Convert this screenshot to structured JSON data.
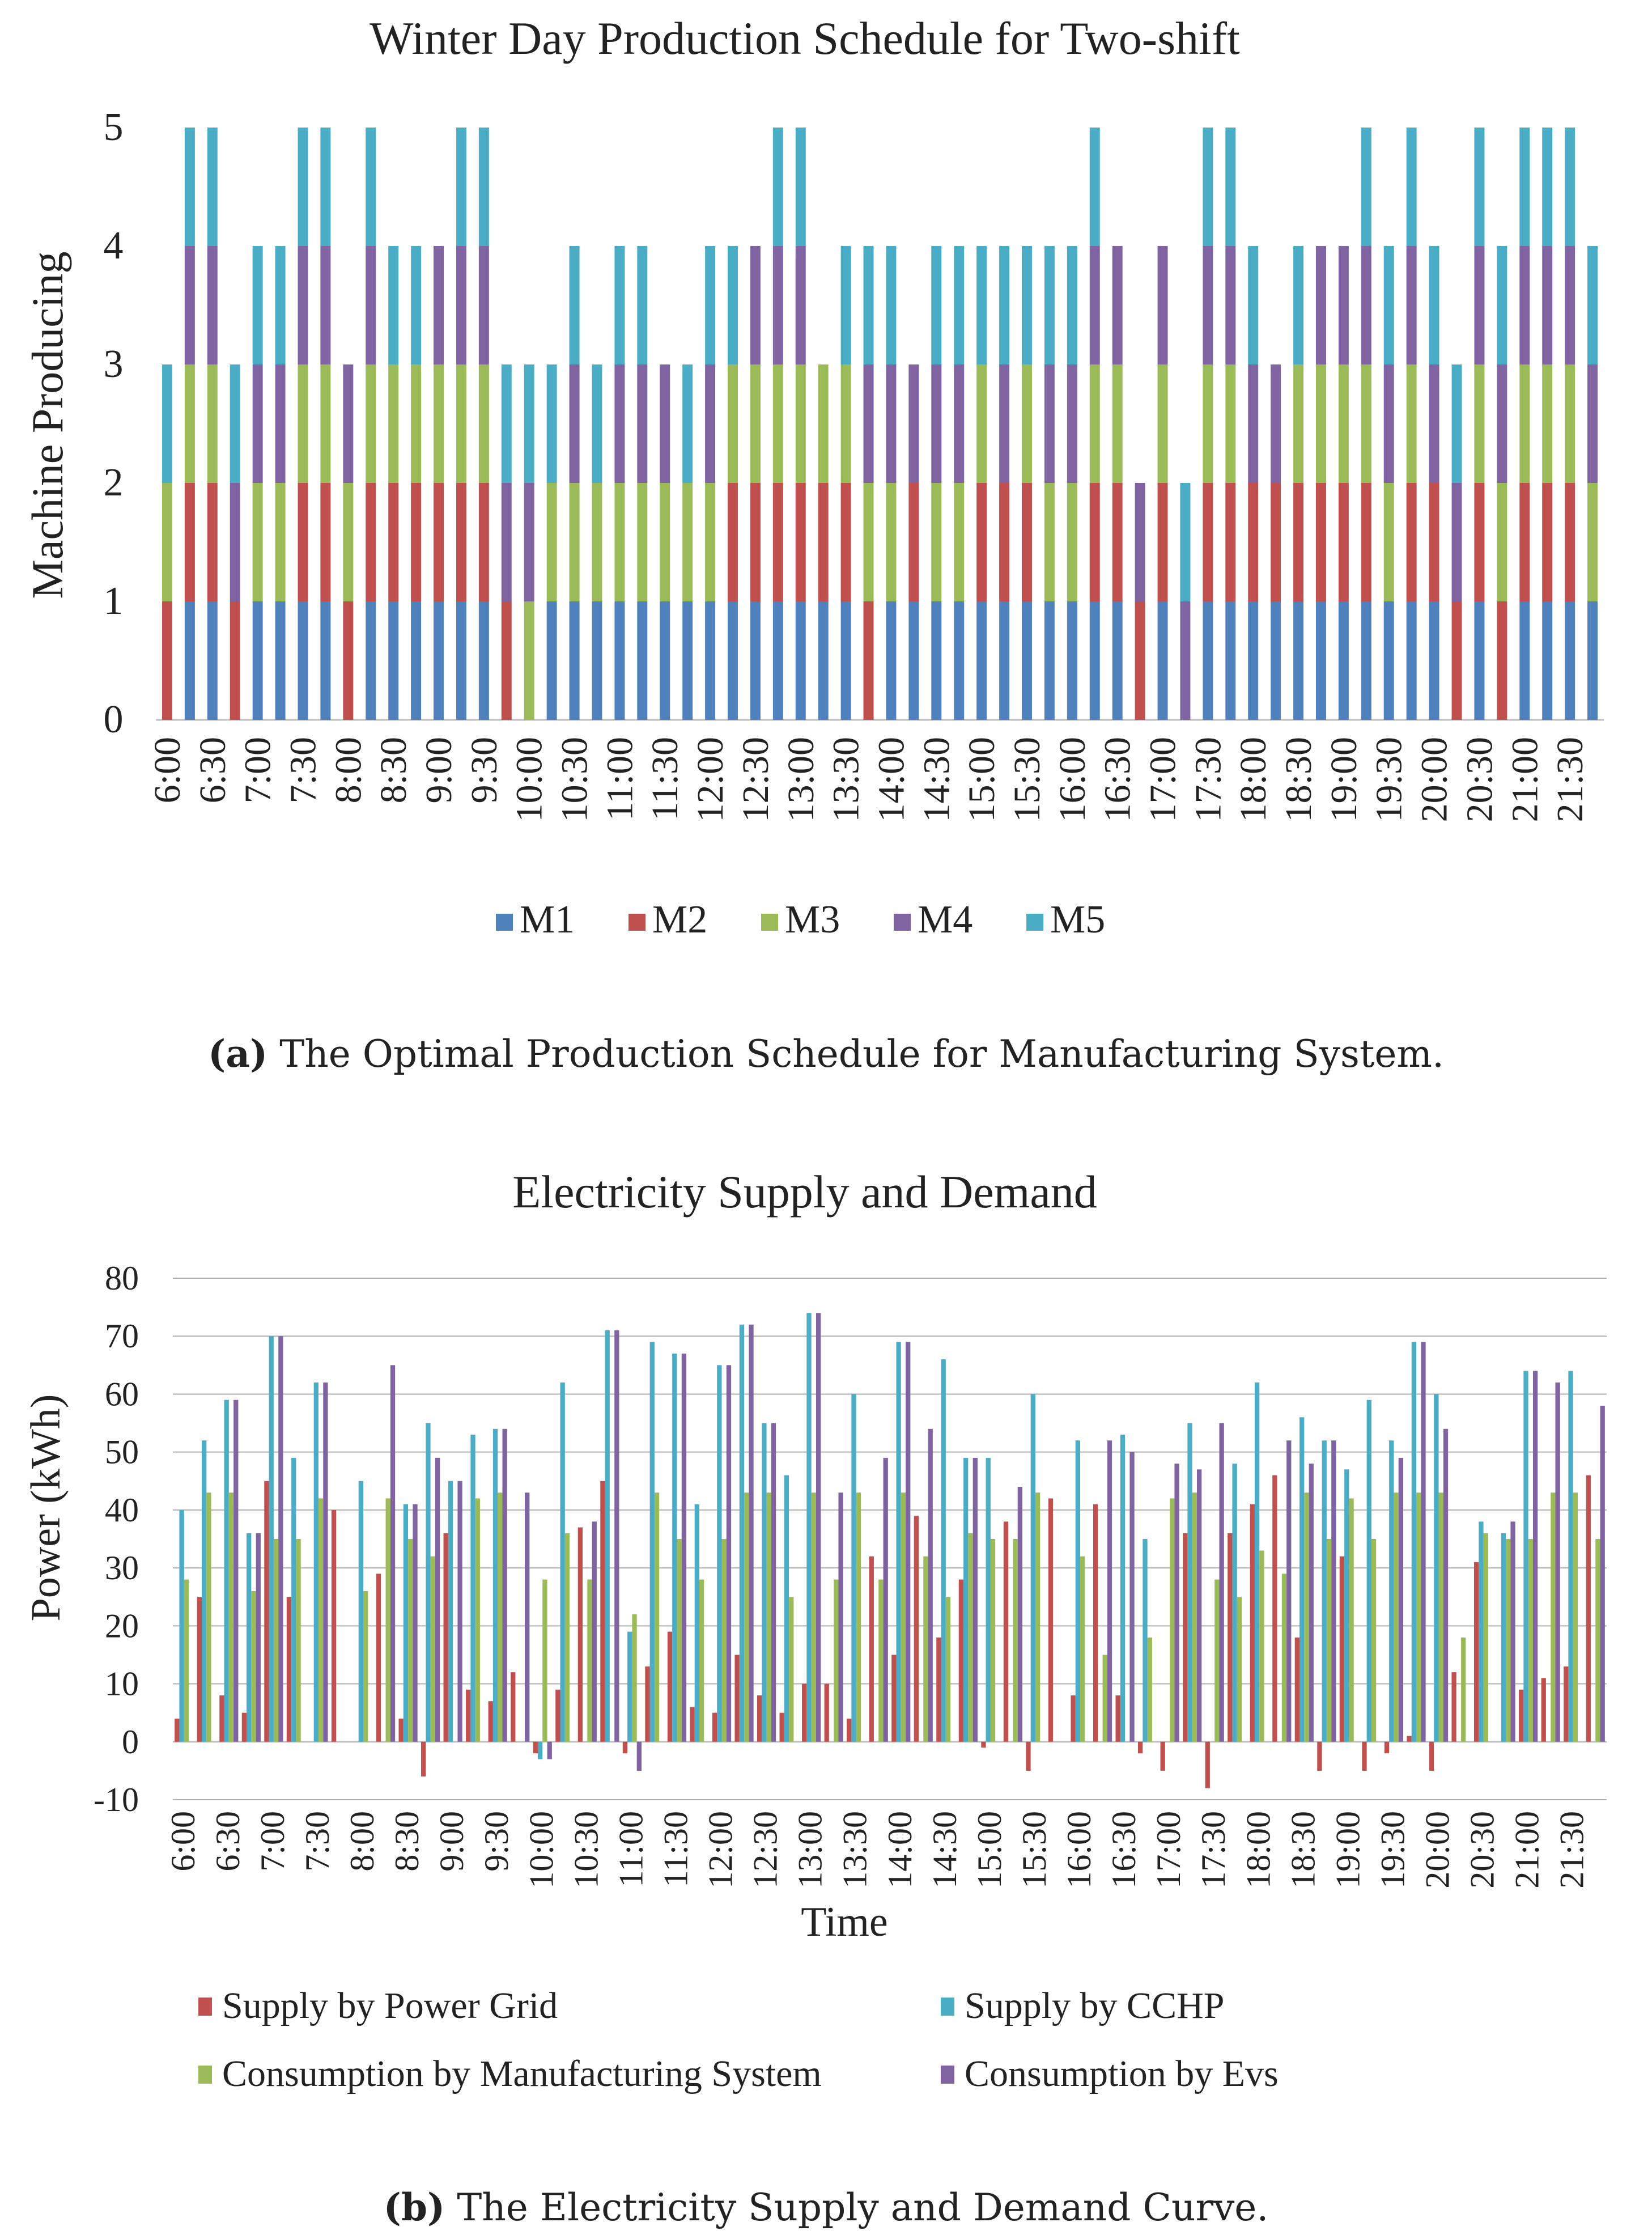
{
  "colors": {
    "M1": "#4f81bd",
    "M2": "#c0504d",
    "M3": "#9bbb59",
    "M4": "#8064a2",
    "M5": "#4bacc6",
    "grid": "#b0b0b0",
    "axis": "#bfbfbf"
  },
  "chart_data": [
    {
      "type": "bar",
      "stacked": true,
      "title": "Winter Day Production Schedule for Two-shift",
      "xlabel": "",
      "ylabel": "Machine Producing",
      "ylim": [
        0,
        5
      ],
      "yticks": [
        "0",
        "1",
        "2",
        "3",
        "4",
        "5"
      ],
      "x_tick_labels": [
        "6:00",
        "6:30",
        "7:00",
        "7:30",
        "8:00",
        "8:30",
        "9:00",
        "9:30",
        "10:00",
        "10:30",
        "11:00",
        "11:30",
        "12:00",
        "12:30",
        "13:00",
        "13:30",
        "14:00",
        "14:30",
        "15:00",
        "15:30",
        "16:00",
        "16:30",
        "17:00",
        "17:30",
        "18:00",
        "18:30",
        "19:00",
        "19:30",
        "20:00",
        "20:30",
        "21:00",
        "21:30"
      ],
      "categories": [
        "6:00",
        "6:15",
        "6:30",
        "6:45",
        "7:00",
        "7:15",
        "7:30",
        "7:45",
        "8:00",
        "8:15",
        "8:30",
        "8:45",
        "9:00",
        "9:15",
        "9:30",
        "9:45",
        "10:00",
        "10:15",
        "10:30",
        "10:45",
        "11:00",
        "11:15",
        "11:30",
        "11:45",
        "12:00",
        "12:15",
        "12:30",
        "12:45",
        "13:00",
        "13:15",
        "13:30",
        "13:45",
        "14:00",
        "14:15",
        "14:30",
        "14:45",
        "15:00",
        "15:15",
        "15:30",
        "15:45",
        "16:00",
        "16:15",
        "16:30",
        "16:45",
        "17:00",
        "17:15",
        "17:30",
        "17:45",
        "18:00",
        "18:15",
        "18:30",
        "18:45",
        "19:00",
        "19:15",
        "19:30",
        "19:45",
        "20:00",
        "20:15",
        "20:30",
        "20:45",
        "21:00",
        "21:15",
        "21:30",
        "21:45"
      ],
      "legend": [
        "M1",
        "M2",
        "M3",
        "M4",
        "M5"
      ],
      "schedule": [
        [
          "M2",
          "M3",
          "M5"
        ],
        [
          "M1",
          "M2",
          "M3",
          "M4",
          "M5"
        ],
        [
          "M1",
          "M2",
          "M3",
          "M4",
          "M5"
        ],
        [
          "M2",
          "M4",
          "M5"
        ],
        [
          "M1",
          "M3",
          "M4",
          "M5"
        ],
        [
          "M1",
          "M3",
          "M4",
          "M5"
        ],
        [
          "M1",
          "M2",
          "M3",
          "M4",
          "M5"
        ],
        [
          "M1",
          "M2",
          "M3",
          "M4",
          "M5"
        ],
        [
          "M2",
          "M3",
          "M4"
        ],
        [
          "M1",
          "M2",
          "M3",
          "M4",
          "M5"
        ],
        [
          "M1",
          "M2",
          "M3",
          "M5"
        ],
        [
          "M1",
          "M2",
          "M3",
          "M5"
        ],
        [
          "M1",
          "M2",
          "M3",
          "M4"
        ],
        [
          "M1",
          "M2",
          "M3",
          "M4",
          "M5"
        ],
        [
          "M1",
          "M2",
          "M3",
          "M4",
          "M5"
        ],
        [
          "M2",
          "M4",
          "M5"
        ],
        [
          "M3",
          "M4",
          "M5"
        ],
        [
          "M1",
          "M3",
          "M5"
        ],
        [
          "M1",
          "M3",
          "M4",
          "M5"
        ],
        [
          "M1",
          "M3",
          "M5"
        ],
        [
          "M1",
          "M3",
          "M4",
          "M5"
        ],
        [
          "M1",
          "M3",
          "M4",
          "M5"
        ],
        [
          "M1",
          "M3",
          "M4"
        ],
        [
          "M1",
          "M3",
          "M5"
        ],
        [
          "M1",
          "M3",
          "M4",
          "M5"
        ],
        [
          "M1",
          "M2",
          "M3",
          "M5"
        ],
        [
          "M1",
          "M2",
          "M3",
          "M4"
        ],
        [
          "M1",
          "M2",
          "M3",
          "M4",
          "M5"
        ],
        [
          "M1",
          "M2",
          "M3",
          "M4",
          "M5"
        ],
        [
          "M1",
          "M2",
          "M3"
        ],
        [
          "M1",
          "M2",
          "M3",
          "M5"
        ],
        [
          "M2",
          "M3",
          "M4",
          "M5"
        ],
        [
          "M1",
          "M3",
          "M4",
          "M5"
        ],
        [
          "M1",
          "M2",
          "M4"
        ],
        [
          "M1",
          "M3",
          "M4",
          "M5"
        ],
        [
          "M1",
          "M3",
          "M4",
          "M5"
        ],
        [
          "M1",
          "M2",
          "M3",
          "M5"
        ],
        [
          "M1",
          "M2",
          "M4",
          "M5"
        ],
        [
          "M1",
          "M2",
          "M3",
          "M5"
        ],
        [
          "M1",
          "M3",
          "M4",
          "M5"
        ],
        [
          "M1",
          "M3",
          "M4",
          "M5"
        ],
        [
          "M1",
          "M2",
          "M3",
          "M4",
          "M5"
        ],
        [
          "M1",
          "M2",
          "M3",
          "M4"
        ],
        [
          "M2",
          "M4"
        ],
        [
          "M1",
          "M2",
          "M3",
          "M4"
        ],
        [
          "M4",
          "M5"
        ],
        [
          "M1",
          "M2",
          "M3",
          "M4",
          "M5"
        ],
        [
          "M1",
          "M2",
          "M3",
          "M4",
          "M5"
        ],
        [
          "M1",
          "M2",
          "M4",
          "M5"
        ],
        [
          "M1",
          "M2",
          "M4"
        ],
        [
          "M1",
          "M2",
          "M3",
          "M5"
        ],
        [
          "M1",
          "M2",
          "M3",
          "M4"
        ],
        [
          "M1",
          "M2",
          "M3",
          "M4"
        ],
        [
          "M1",
          "M2",
          "M3",
          "M4",
          "M5"
        ],
        [
          "M1",
          "M3",
          "M4",
          "M5"
        ],
        [
          "M1",
          "M2",
          "M3",
          "M4",
          "M5"
        ],
        [
          "M1",
          "M2",
          "M4",
          "M5"
        ],
        [
          "M2",
          "M4",
          "M5"
        ],
        [
          "M1",
          "M2",
          "M3",
          "M4",
          "M5"
        ],
        [
          "M2",
          "M3",
          "M4",
          "M5"
        ],
        [
          "M1",
          "M2",
          "M3",
          "M4",
          "M5"
        ],
        [
          "M1",
          "M2",
          "M3",
          "M4",
          "M5"
        ],
        [
          "M1",
          "M2",
          "M3",
          "M4",
          "M5"
        ],
        [
          "M1",
          "M3",
          "M4",
          "M5"
        ]
      ]
    },
    {
      "type": "bar",
      "title": "Electricity Supply and Demand",
      "xlabel": "Time",
      "ylabel": "Power (kWh)",
      "ylim": [
        -10,
        80
      ],
      "yticks": [
        "-10",
        "0",
        "10",
        "20",
        "30",
        "40",
        "50",
        "60",
        "70",
        "80"
      ],
      "x_tick_labels": [
        "6:00",
        "6:30",
        "7:00",
        "7:30",
        "8:00",
        "8:30",
        "9:00",
        "9:30",
        "10:00",
        "10:30",
        "11:00",
        "11:30",
        "12:00",
        "12:30",
        "13:00",
        "13:30",
        "14:00",
        "14:30",
        "15:00",
        "15:30",
        "16:00",
        "16:30",
        "17:00",
        "17:30",
        "18:00",
        "18:30",
        "19:00",
        "19:30",
        "20:00",
        "20:30",
        "21:00",
        "21:30"
      ],
      "series": [
        {
          "name": "Supply by Power Grid",
          "color": "#c0504d",
          "values": [
            4,
            25,
            8,
            5,
            45,
            25,
            0,
            40,
            0,
            29,
            4,
            -6,
            36,
            9,
            7,
            12,
            -2,
            9,
            37,
            45,
            -2,
            13,
            19,
            6,
            5,
            15,
            8,
            5,
            10,
            10,
            4,
            32,
            15,
            39,
            18,
            28,
            -1,
            38,
            -5,
            42,
            8,
            41,
            8,
            -2,
            -5,
            36,
            -8,
            36,
            41,
            46,
            18,
            -5,
            32,
            -5,
            -2,
            1,
            -5,
            12,
            31,
            0,
            9,
            11,
            13,
            46
          ]
        },
        {
          "name": "Supply by CCHP",
          "color": "#4bacc6",
          "values": [
            40,
            52,
            59,
            36,
            70,
            49,
            62,
            0,
            45,
            0,
            41,
            55,
            45,
            53,
            54,
            0,
            -3,
            62,
            0,
            71,
            19,
            69,
            67,
            41,
            65,
            72,
            55,
            46,
            74,
            0,
            60,
            0,
            69,
            0,
            66,
            49,
            49,
            0,
            60,
            0,
            52,
            0,
            53,
            35,
            0,
            55,
            0,
            48,
            62,
            0,
            56,
            52,
            47,
            59,
            52,
            69,
            60,
            0,
            38,
            36,
            64,
            0,
            64,
            0
          ]
        },
        {
          "name": "Consumption by Manufacturing System",
          "color": "#9bbb59",
          "values": [
            28,
            43,
            43,
            26,
            35,
            35,
            42,
            0,
            26,
            42,
            35,
            32,
            0,
            42,
            43,
            0,
            28,
            36,
            28,
            0,
            22,
            43,
            35,
            28,
            35,
            43,
            43,
            25,
            43,
            28,
            43,
            28,
            43,
            32,
            25,
            36,
            35,
            35,
            43,
            0,
            32,
            15,
            0,
            18,
            42,
            43,
            28,
            25,
            33,
            29,
            43,
            35,
            42,
            35,
            43,
            43,
            43,
            18,
            36,
            35,
            35,
            43,
            43,
            35
          ]
        },
        {
          "name": "Consumption by Evs",
          "color": "#8064a2",
          "values": [
            0,
            0,
            59,
            36,
            70,
            0,
            62,
            0,
            0,
            65,
            41,
            49,
            45,
            0,
            54,
            43,
            -3,
            0,
            38,
            71,
            -5,
            0,
            67,
            0,
            65,
            72,
            55,
            0,
            74,
            43,
            0,
            49,
            69,
            54,
            0,
            49,
            0,
            44,
            0,
            0,
            0,
            52,
            50,
            0,
            48,
            47,
            55,
            0,
            0,
            52,
            48,
            52,
            0,
            0,
            49,
            69,
            54,
            0,
            0,
            38,
            64,
            62,
            0,
            58
          ]
        }
      ]
    }
  ],
  "captions": {
    "a_label": "(a)",
    "a_text": " The Optimal Production Schedule for Manufacturing System.",
    "b_label": "(b)",
    "b_text": " The Electricity Supply and Demand Curve."
  }
}
